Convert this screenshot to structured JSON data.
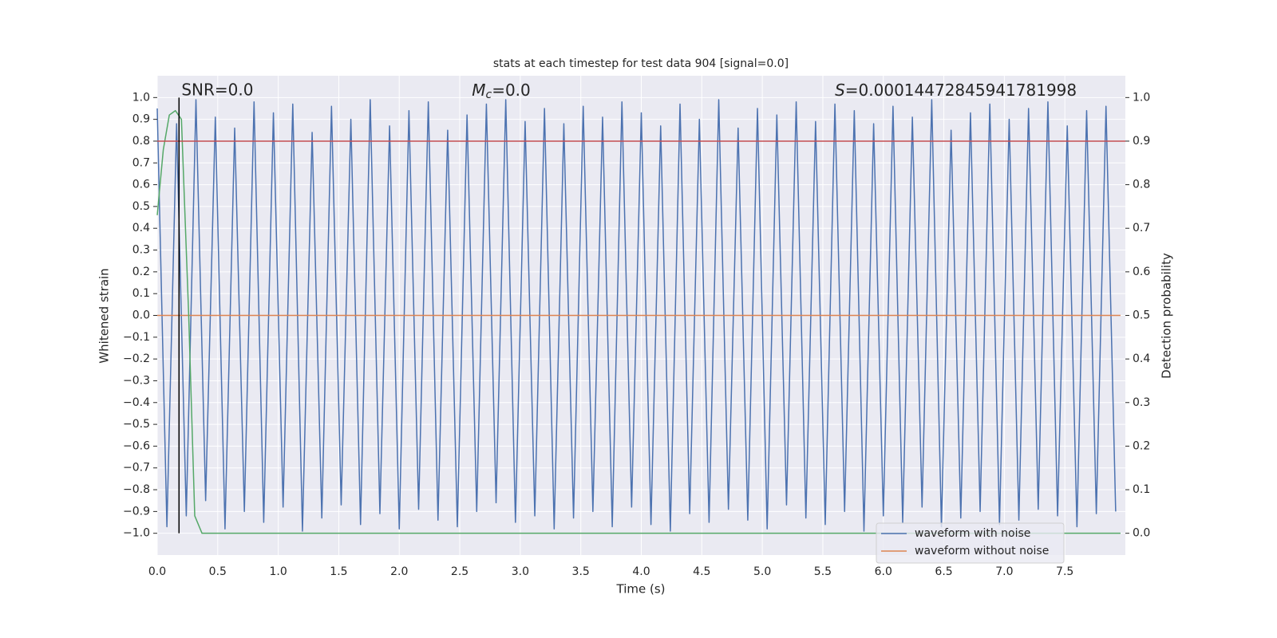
{
  "chart_data": {
    "type": "line",
    "title": "stats at each timestep for test data 904 [signal=0.0]",
    "xlabel": "Time (s)",
    "ylabel": "Whitened strain",
    "y2label": "Detection probability",
    "annotations": {
      "snr": {
        "text": "SNR=0.0",
        "x": 0.2
      },
      "mc": {
        "symbol": "M",
        "subscript": "c",
        "text": "=0.0",
        "x": 2.6
      },
      "s": {
        "symbol": "S",
        "text": "=0.00014472845941781998",
        "x": 5.6
      }
    },
    "xlim": [
      0,
      8
    ],
    "xticks": [
      {
        "value": 0,
        "label": "0.0"
      },
      {
        "value": 0.5,
        "label": "0.5"
      },
      {
        "value": 1,
        "label": "1.0"
      },
      {
        "value": 1.5,
        "label": "1.5"
      },
      {
        "value": 2,
        "label": "2.0"
      },
      {
        "value": 2.5,
        "label": "2.5"
      },
      {
        "value": 3,
        "label": "3.0"
      },
      {
        "value": 3.5,
        "label": "3.5"
      },
      {
        "value": 4,
        "label": "4.0"
      },
      {
        "value": 4.5,
        "label": "4.5"
      },
      {
        "value": 5,
        "label": "5.0"
      },
      {
        "value": 5.5,
        "label": "5.5"
      },
      {
        "value": 6,
        "label": "6.0"
      },
      {
        "value": 6.5,
        "label": "6.5"
      },
      {
        "value": 7,
        "label": "7.0"
      },
      {
        "value": 7.5,
        "label": "7.5"
      }
    ],
    "ylim": [
      -1.1,
      1.1
    ],
    "yticks": [
      {
        "value": -1,
        "label": "−1.0"
      },
      {
        "value": -0.9,
        "label": "−0.9"
      },
      {
        "value": -0.8,
        "label": "−0.8"
      },
      {
        "value": -0.7,
        "label": "−0.7"
      },
      {
        "value": -0.6,
        "label": "−0.6"
      },
      {
        "value": -0.5,
        "label": "−0.5"
      },
      {
        "value": -0.4,
        "label": "−0.4"
      },
      {
        "value": -0.3,
        "label": "−0.3"
      },
      {
        "value": -0.2,
        "label": "−0.2"
      },
      {
        "value": -0.1,
        "label": "−0.1"
      },
      {
        "value": 0,
        "label": "0.0"
      },
      {
        "value": 0.1,
        "label": "0.1"
      },
      {
        "value": 0.2,
        "label": "0.2"
      },
      {
        "value": 0.3,
        "label": "0.3"
      },
      {
        "value": 0.4,
        "label": "0.4"
      },
      {
        "value": 0.5,
        "label": "0.5"
      },
      {
        "value": 0.6,
        "label": "0.6"
      },
      {
        "value": 0.7,
        "label": "0.7"
      },
      {
        "value": 0.8,
        "label": "0.8"
      },
      {
        "value": 0.9,
        "label": "0.9"
      },
      {
        "value": 1,
        "label": "1.0"
      }
    ],
    "y2lim": [
      -0.05,
      1.05
    ],
    "y2ticks": [
      {
        "value": 0,
        "label": "0.0"
      },
      {
        "value": 0.1,
        "label": "0.1"
      },
      {
        "value": 0.2,
        "label": "0.2"
      },
      {
        "value": 0.3,
        "label": "0.3"
      },
      {
        "value": 0.4,
        "label": "0.4"
      },
      {
        "value": 0.5,
        "label": "0.5"
      },
      {
        "value": 0.6,
        "label": "0.6"
      },
      {
        "value": 0.7,
        "label": "0.7"
      },
      {
        "value": 0.8,
        "label": "0.8"
      },
      {
        "value": 0.9,
        "label": "0.9"
      },
      {
        "value": 1,
        "label": "1.0"
      }
    ],
    "grid": true,
    "legend": "lower right",
    "series": [
      {
        "name": "waveform with noise",
        "color": "#4c72b0",
        "x": [
          0,
          0.08,
          0.16,
          0.24,
          0.32,
          0.4,
          0.48,
          0.56,
          0.64,
          0.72,
          0.8,
          0.88,
          0.96,
          1.04,
          1.12,
          1.2,
          1.28,
          1.36,
          1.44,
          1.52,
          1.6,
          1.68,
          1.76,
          1.84,
          1.92,
          2,
          2.08,
          2.16,
          2.24,
          2.32,
          2.4,
          2.48,
          2.56,
          2.64,
          2.72,
          2.8,
          2.88,
          2.96,
          3.04,
          3.12,
          3.2,
          3.28,
          3.36,
          3.44,
          3.52,
          3.6,
          3.68,
          3.76,
          3.84,
          3.92,
          4,
          4.08,
          4.16,
          4.24,
          4.32,
          4.4,
          4.48,
          4.56,
          4.64,
          4.72,
          4.8,
          4.88,
          4.96,
          5.04,
          5.12,
          5.2,
          5.28,
          5.36,
          5.44,
          5.52,
          5.6,
          5.68,
          5.76,
          5.84,
          5.92,
          6,
          6.08,
          6.16,
          6.24,
          6.32,
          6.4,
          6.48,
          6.56,
          6.64,
          6.72,
          6.8,
          6.88,
          6.96,
          7.04,
          7.12,
          7.2,
          7.28,
          7.36,
          7.44,
          7.52,
          7.6,
          7.68,
          7.76,
          7.84,
          7.92
        ],
        "values": [
          0.95,
          -0.97,
          0.88,
          -0.92,
          0.99,
          -0.85,
          0.91,
          -0.98,
          0.86,
          -0.9,
          0.98,
          -0.95,
          0.93,
          -0.88,
          0.97,
          -0.99,
          0.84,
          -0.93,
          0.96,
          -0.87,
          0.9,
          -0.96,
          0.99,
          -0.91,
          0.87,
          -0.98,
          0.94,
          -0.89,
          0.98,
          -0.94,
          0.85,
          -0.97,
          0.92,
          -0.9,
          0.97,
          -0.86,
          0.99,
          -0.95,
          0.89,
          -0.92,
          0.95,
          -0.98,
          0.88,
          -0.93,
          0.96,
          -0.9,
          0.91,
          -0.97,
          0.98,
          -0.88,
          0.93,
          -0.96,
          0.87,
          -0.99,
          0.97,
          -0.91,
          0.9,
          -0.95,
          0.99,
          -0.89,
          0.86,
          -0.94,
          0.95,
          -0.98,
          0.92,
          -0.87,
          0.98,
          -0.93,
          0.89,
          -0.96,
          0.97,
          -0.9,
          0.94,
          -0.99,
          0.88,
          -0.92,
          0.96,
          -0.95,
          0.91,
          -0.88,
          0.99,
          -0.97,
          0.85,
          -0.93,
          0.93,
          -0.9,
          0.97,
          -0.96,
          0.9,
          -0.94,
          0.95,
          -0.89,
          0.98,
          -0.92,
          0.87,
          -0.97,
          0.94,
          -0.91,
          0.96,
          -0.9
        ]
      },
      {
        "name": "waveform without noise",
        "color": "#dd8452",
        "x": [
          0,
          7.96
        ],
        "values": [
          0,
          0
        ]
      },
      {
        "color": "#55a868",
        "axis": "y2",
        "x": [
          0,
          0.05,
          0.1,
          0.15,
          0.2,
          0.26,
          0.31,
          0.37,
          0.5,
          7.96
        ],
        "values": [
          0.73,
          0.88,
          0.96,
          0.97,
          0.95,
          0.5,
          0.04,
          0,
          0,
          0
        ]
      }
    ],
    "hlines": [
      {
        "value": 0.9,
        "axis": "y2",
        "color": "#c44e52"
      }
    ],
    "vlines": [
      {
        "value": 0.18,
        "color": "#000000"
      }
    ]
  }
}
